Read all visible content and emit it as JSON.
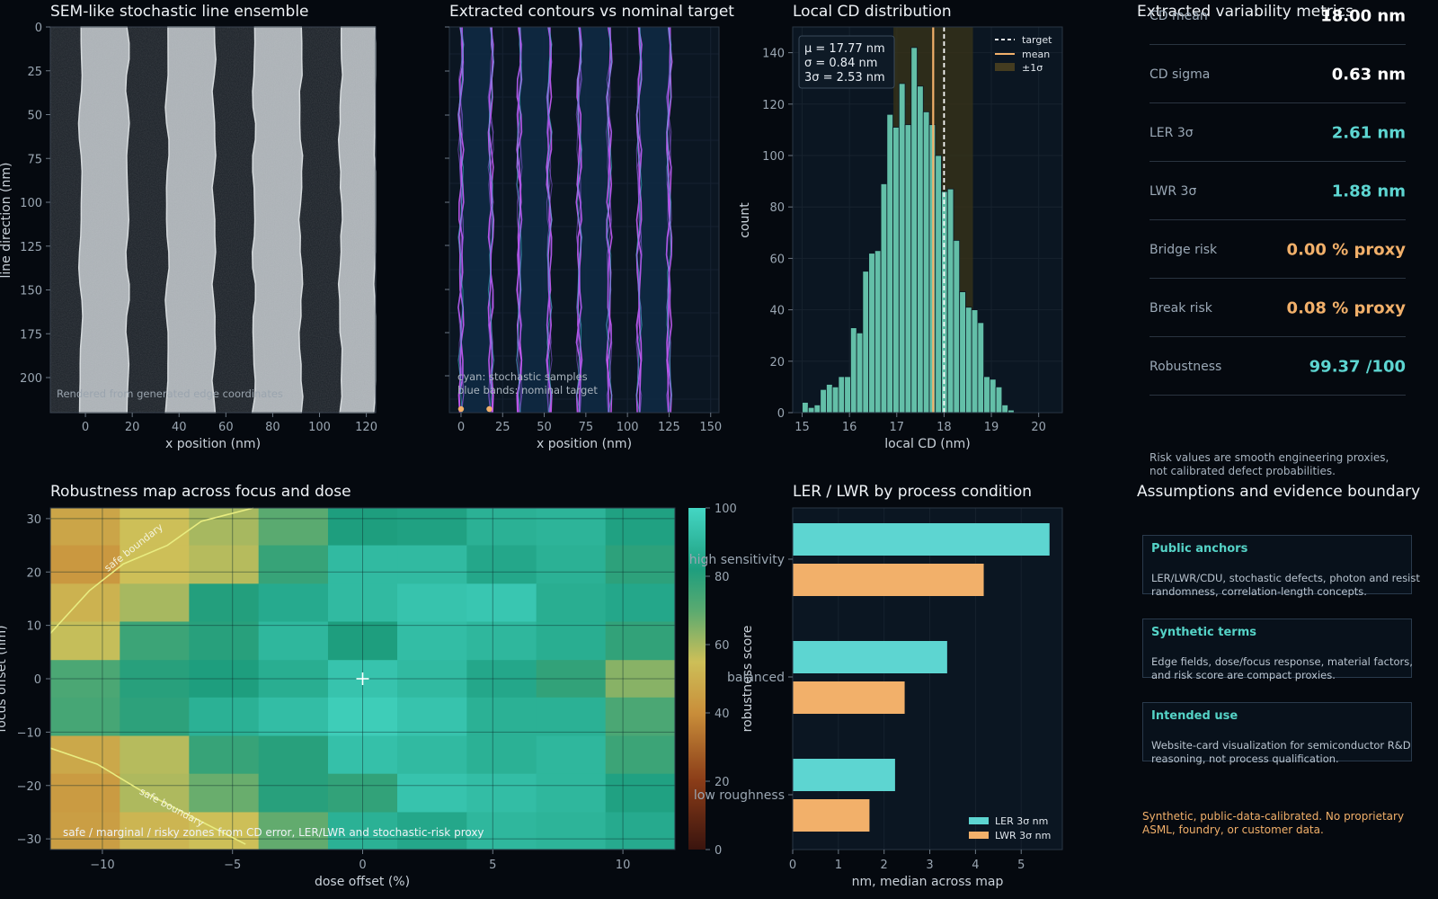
{
  "panels": {
    "sem": {
      "title": "SEM-like stochastic line ensemble",
      "xlabel": "x position (nm)",
      "ylabel": "line direction (nm)",
      "caption": "Rendered from generated edge coordinates",
      "xticks": [
        "0",
        "20",
        "40",
        "60",
        "80",
        "100",
        "120"
      ],
      "yticks": [
        "0",
        "25",
        "50",
        "75",
        "100",
        "125",
        "150",
        "175",
        "200"
      ]
    },
    "contours": {
      "title": "Extracted contours vs nominal target",
      "xlabel": "x position (nm)",
      "xticks": [
        "0",
        "25",
        "50",
        "75",
        "100",
        "125",
        "150"
      ],
      "caption1": "cyan: stochastic samples",
      "caption2": "blue bands: nominal target"
    },
    "histogram": {
      "title": "Local CD distribution",
      "xlabel": "local CD (nm)",
      "ylabel": "count",
      "stats": [
        "μ = 17.77 nm",
        "σ = 0.84 nm",
        "3σ = 2.53 nm"
      ],
      "legend": [
        "target",
        "mean",
        "±1σ"
      ],
      "xticks": [
        "15",
        "16",
        "17",
        "18",
        "19",
        "20"
      ],
      "yticks": [
        "0",
        "20",
        "40",
        "60",
        "80",
        "100",
        "120",
        "140"
      ]
    },
    "robustness": {
      "title": "Robustness map across focus and dose",
      "xlabel": "dose offset (%)",
      "ylabel": "focus offset (nm)",
      "colorbar_label": "robustness score",
      "boundary_label": "safe boundary",
      "caption": "safe / marginal / risky zones from CD error, LER/LWR and stochastic-risk proxy",
      "xticks": [
        "−10",
        "−5",
        "0",
        "5",
        "10"
      ],
      "yticks": [
        "30",
        "20",
        "10",
        "0",
        "−10",
        "−20",
        "−30"
      ],
      "cbticks": [
        "100",
        "80",
        "60",
        "40",
        "20",
        "0"
      ]
    },
    "ler": {
      "title": "LER / LWR by process condition",
      "xlabel": "nm, median across map",
      "xticks": [
        "0",
        "1",
        "2",
        "3",
        "4",
        "5"
      ]
    }
  },
  "metrics": {
    "title": "Extracted variability metrics",
    "rows": [
      {
        "label": "CD mean",
        "value": "18.00 nm"
      },
      {
        "label": "CD sigma",
        "value": "0.63 nm"
      },
      {
        "label": "LER 3σ",
        "value": "2.61 nm"
      },
      {
        "label": "LWR 3σ",
        "value": "1.88 nm"
      },
      {
        "label": "Bridge risk",
        "value": "0.00 % proxy"
      },
      {
        "label": "Break risk",
        "value": "0.08 % proxy"
      },
      {
        "label": "Robustness",
        "value": "99.37 /100"
      }
    ],
    "note": "Risk values are smooth engineering proxies, not calibrated defect probabilities."
  },
  "assumptions": {
    "title": "Assumptions and evidence boundary",
    "cards": [
      {
        "title": "Public anchors",
        "body": "LER/LWR/CDU, stochastic defects, photon and resist randomness, correlation-length concepts."
      },
      {
        "title": "Synthetic terms",
        "body": "Edge fields, dose/focus response, material factors, and risk score are compact proxies."
      },
      {
        "title": "Intended use",
        "body": "Website-card visualization for semiconductor R&D reasoning, not process qualification."
      }
    ],
    "footer": "Synthetic, public-data-calibrated. No proprietary ASML, foundry, or customer data."
  },
  "colors": {
    "cyan": "#5dd5d1",
    "orange": "#f2b06a",
    "boundary": "#e8ec80",
    "hist_bar": "#63bfa8"
  },
  "chart_data": [
    {
      "type": "heatmap",
      "title": "SEM-like stochastic line ensemble",
      "xlabel": "x position (nm)",
      "ylabel": "line direction (nm)",
      "xlim": [
        -15,
        124
      ],
      "ylim": [
        220,
        0
      ],
      "lines": [
        {
          "x_left": -2,
          "x_right": 18
        },
        {
          "x_left": 35,
          "x_right": 55
        },
        {
          "x_left": 72,
          "x_right": 92
        },
        {
          "x_left": 109,
          "x_right": 124
        }
      ]
    },
    {
      "type": "line",
      "title": "Extracted contours vs nominal target",
      "xlabel": "x position (nm)",
      "xlim": [
        -7,
        155
      ],
      "nominal_lines": [
        {
          "x_left": 0,
          "x_right": 18
        },
        {
          "x_left": 35,
          "x_right": 53
        },
        {
          "x_left": 71,
          "x_right": 89
        },
        {
          "x_left": 107,
          "x_right": 125
        }
      ],
      "markers": [
        0,
        17
      ]
    },
    {
      "type": "bar",
      "title": "Local CD distribution",
      "xlabel": "local CD (nm)",
      "ylabel": "count",
      "xlim": [
        14.8,
        20.5
      ],
      "ylim": [
        0,
        150
      ],
      "bin_start": 15.0,
      "bin_width": 0.128,
      "counts": [
        4,
        2,
        3,
        9,
        11,
        10,
        14,
        14,
        33,
        31,
        55,
        62,
        63,
        89,
        116,
        111,
        128,
        112,
        142,
        127,
        117,
        112,
        100,
        86,
        87,
        67,
        47,
        41,
        40,
        35,
        14,
        13,
        10,
        3,
        1
      ],
      "mean": 17.77,
      "target": 18.0,
      "sigma": 0.84
    },
    {
      "type": "heatmap",
      "title": "Robustness map across focus and dose",
      "xlabel": "dose offset (%)",
      "ylabel": "focus offset (nm)",
      "xlim": [
        -12,
        12
      ],
      "ylim": [
        -32,
        32
      ],
      "x_edges": [
        -12,
        -9.33,
        -6.67,
        -4,
        -1.33,
        1.33,
        4,
        6.67,
        9.33,
        12
      ],
      "y_edges": [
        32,
        25,
        17.8,
        10.7,
        3.5,
        -3.5,
        -10.7,
        -17.8,
        -25,
        -32
      ],
      "values": [
        [
          47,
          55,
          60,
          70,
          82,
          83,
          88,
          89,
          83
        ],
        [
          43,
          55,
          58,
          77,
          91,
          91,
          85,
          88,
          79
        ],
        [
          51,
          60,
          81,
          86,
          91,
          94,
          95,
          87,
          85
        ],
        [
          56,
          76,
          80,
          90,
          82,
          92,
          90,
          87,
          78
        ],
        [
          73,
          80,
          82,
          87,
          94,
          91,
          85,
          78,
          64
        ],
        [
          74,
          79,
          88,
          92,
          97,
          94,
          88,
          88,
          73
        ],
        [
          48,
          58,
          77,
          80,
          93,
          91,
          88,
          90,
          76
        ],
        [
          44,
          59,
          68,
          80,
          78,
          94,
          92,
          90,
          83
        ],
        [
          45,
          52,
          55,
          69,
          88,
          85,
          90,
          89,
          86
        ]
      ],
      "zlim": [
        0,
        100
      ],
      "optimum": [
        0,
        0
      ],
      "boundaries": [
        [
          [
            -12.5,
            8.5
          ],
          [
            -10.5,
            16.5
          ],
          [
            -9.2,
            21.5
          ],
          [
            -7.5,
            25
          ],
          [
            -6.2,
            29.5
          ],
          [
            -4.2,
            33
          ]
        ],
        [
          [
            -12.5,
            -13
          ],
          [
            -10.2,
            -16
          ],
          [
            -8.5,
            -21
          ],
          [
            -6.5,
            -26
          ],
          [
            -4.5,
            -31
          ]
        ]
      ]
    },
    {
      "type": "bar",
      "orientation": "horizontal",
      "title": "LER / LWR by process condition",
      "xlabel": "nm, median across map",
      "categories": [
        "high sensitivity",
        "balanced",
        "low roughness"
      ],
      "series": [
        {
          "name": "LER 3σ nm",
          "values": [
            5.62,
            3.38,
            2.24
          ]
        },
        {
          "name": "LWR 3σ nm",
          "values": [
            4.18,
            2.45,
            1.68
          ]
        }
      ],
      "xlim": [
        0,
        5.9
      ]
    }
  ]
}
